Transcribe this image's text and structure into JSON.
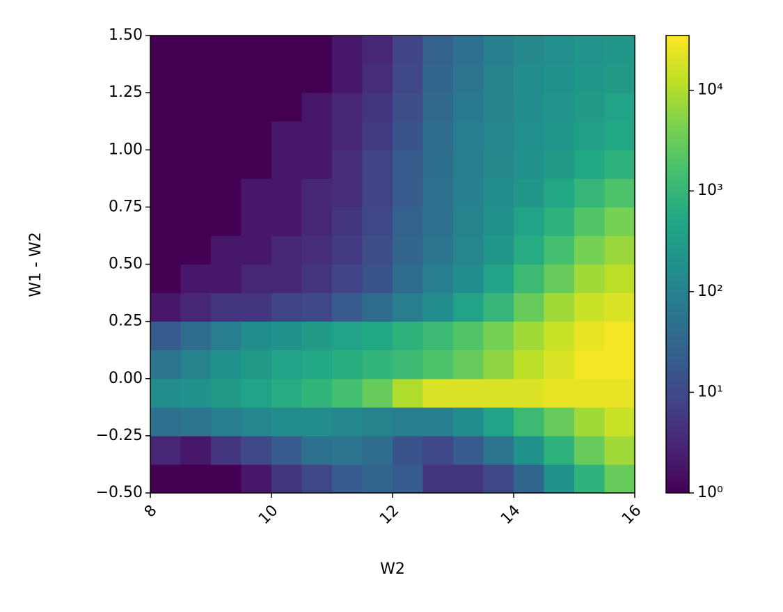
{
  "chart_data": {
    "type": "hist2d",
    "xlabel": "W2",
    "ylabel": "W1 - W2",
    "colormap": "viridis",
    "log_color": true,
    "clim": [
      1,
      35000
    ],
    "xlim": [
      8,
      16
    ],
    "ylim": [
      -0.5,
      1.5
    ],
    "xticks": [
      8,
      10,
      12,
      14,
      16
    ],
    "yticks": [
      {
        "value": -0.5,
        "label": "−0.50"
      },
      {
        "value": -0.25,
        "label": "−0.25"
      },
      {
        "value": 0,
        "label": "0.00"
      },
      0.25,
      {
        "value": 0.5,
        "label": "0.50"
      },
      0.75,
      {
        "value": 1,
        "label": "1.00"
      },
      1.25,
      {
        "value": 1.5,
        "label": "1.50"
      }
    ],
    "cticks": [
      {
        "value": 1,
        "label": "10⁰"
      },
      {
        "value": 10,
        "label": "10¹"
      },
      {
        "value": 100,
        "label": "10²"
      },
      {
        "value": 1000,
        "label": "10³"
      },
      {
        "value": 10000,
        "label": "10⁴"
      }
    ],
    "xbins": [
      8,
      8.5,
      9,
      9.5,
      10,
      10.5,
      11,
      11.5,
      12,
      12.5,
      13,
      13.5,
      14,
      14.5,
      15,
      15.5,
      16
    ],
    "ybins": [
      -0.5,
      -0.375,
      -0.25,
      -0.125,
      0,
      0.125,
      0.25,
      0.375,
      0.5,
      0.625,
      0.75,
      0.875,
      1,
      1.125,
      1.25,
      1.375,
      1.5
    ],
    "z": [
      [
        1,
        1,
        1,
        2,
        5,
        10,
        20,
        30,
        20,
        5,
        5,
        10,
        30,
        200,
        800,
        3000
      ],
      [
        3,
        2,
        5,
        10,
        20,
        50,
        60,
        40,
        15,
        10,
        20,
        60,
        200,
        800,
        3000,
        8000
      ],
      [
        50,
        60,
        80,
        120,
        150,
        150,
        120,
        100,
        80,
        80,
        150,
        400,
        1200,
        3000,
        8000,
        15000
      ],
      [
        150,
        200,
        300,
        400,
        600,
        900,
        1500,
        3000,
        10000,
        20000,
        20000,
        20000,
        20000,
        25000,
        25000,
        25000
      ],
      [
        60,
        100,
        200,
        300,
        400,
        500,
        700,
        900,
        1200,
        1800,
        3000,
        6000,
        12000,
        20000,
        30000,
        30000
      ],
      [
        20,
        40,
        80,
        150,
        200,
        300,
        400,
        500,
        800,
        1200,
        2000,
        4000,
        8000,
        15000,
        25000,
        30000
      ],
      [
        2,
        3,
        5,
        5,
        8,
        10,
        20,
        40,
        80,
        150,
        400,
        1000,
        3000,
        8000,
        15000,
        20000
      ],
      [
        1,
        2,
        2,
        3,
        3,
        5,
        8,
        15,
        40,
        80,
        150,
        400,
        1200,
        3000,
        8000,
        12000
      ],
      [
        1,
        1,
        2,
        2,
        3,
        4,
        6,
        12,
        30,
        60,
        120,
        250,
        600,
        1500,
        4000,
        7000
      ],
      [
        1,
        1,
        1,
        2,
        2,
        3,
        5,
        10,
        25,
        50,
        100,
        200,
        400,
        800,
        2000,
        4000
      ],
      [
        1,
        1,
        1,
        2,
        2,
        3,
        4,
        8,
        20,
        50,
        90,
        150,
        250,
        500,
        1000,
        1800
      ],
      [
        1,
        1,
        1,
        1,
        2,
        2,
        4,
        8,
        20,
        45,
        80,
        130,
        200,
        300,
        500,
        800
      ],
      [
        1,
        1,
        1,
        1,
        2,
        2,
        3,
        6,
        15,
        40,
        80,
        120,
        180,
        250,
        350,
        500
      ],
      [
        1,
        1,
        1,
        1,
        1,
        2,
        3,
        5,
        12,
        35,
        70,
        110,
        160,
        220,
        300,
        400
      ],
      [
        1,
        1,
        1,
        1,
        1,
        1,
        2,
        4,
        10,
        30,
        60,
        100,
        150,
        200,
        250,
        300
      ],
      [
        1,
        1,
        1,
        1,
        1,
        1,
        2,
        3,
        8,
        25,
        50,
        90,
        130,
        180,
        220,
        250
      ]
    ]
  }
}
